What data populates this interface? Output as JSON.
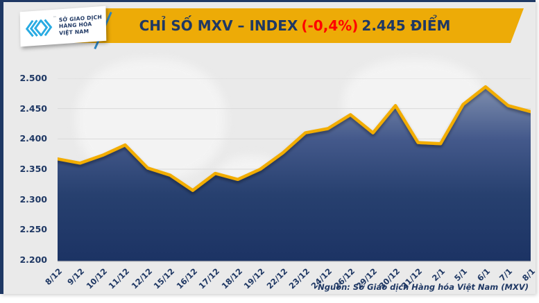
{
  "header": {
    "logo": {
      "lines": [
        "SỞ GIAO DỊCH",
        "HÀNG HÓA",
        "VIỆT NAM"
      ],
      "tm": "™"
    },
    "title": {
      "prefix": "CHỈ SỐ MXV – INDEX",
      "change": "(-0,4%)",
      "suffix": "2.445 ĐIỂM"
    }
  },
  "footer": {
    "source": "Nguồn: Sở Giao dịch Hàng hóa Việt Nam (MXV)"
  },
  "colors": {
    "navy": "#1F3864",
    "red": "#FF0000",
    "banner_gold": "#EDAB07",
    "line_gold": "#F2AD00",
    "background": "#EAEAEA",
    "logo_cyan": "#29ABE2",
    "grid": "#d9d9d9",
    "axis": "#c8c8c8",
    "area_gradient": [
      "#7E8EAE",
      "#44598B",
      "#27406F",
      "#1C3364"
    ]
  },
  "chart_data": {
    "type": "area",
    "title": "CHỈ SỐ MXV – INDEX (-0,4%) 2.445 ĐIỂM",
    "series_name": "MXV-Index",
    "categories": [
      "8/12",
      "9/12",
      "10/12",
      "11/12",
      "12/12",
      "15/12",
      "16/12",
      "17/12",
      "18/12",
      "19/12",
      "22/12",
      "23/12",
      "24/12",
      "26/12",
      "29/12",
      "30/12",
      "31/12",
      "2/1",
      "5/1",
      "6/1",
      "7/1",
      "8/1"
    ],
    "values": [
      2367,
      2360,
      2373,
      2390,
      2352,
      2340,
      2315,
      2343,
      2333,
      2350,
      2377,
      2410,
      2417,
      2440,
      2410,
      2455,
      2394,
      2392,
      2457,
      2486,
      2455,
      2445
    ],
    "ylim": [
      2200,
      2500
    ],
    "ytick_step": 50,
    "ytick_labels": [
      "2.500",
      "2.450",
      "2.400",
      "2.350",
      "2.300",
      "2.250",
      "2.200"
    ],
    "grid": true,
    "legend": "none",
    "last_value_label": "2.445",
    "change_label": "(-0,4%)"
  }
}
